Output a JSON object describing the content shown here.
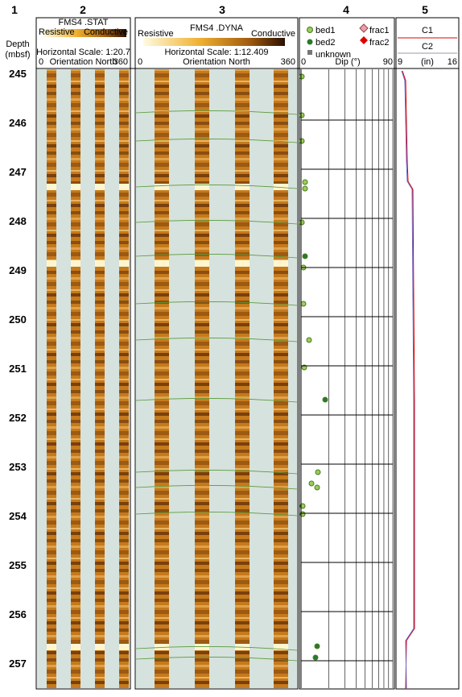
{
  "columns": [
    {
      "number": "1",
      "header": [
        "Depth",
        "(mbsf)"
      ]
    },
    {
      "number": "2",
      "title": "FMS4 .STAT",
      "left": "Resistive",
      "right": "Conductive",
      "scale": "Horizontal Scale: 1:20.7",
      "axis_min": "0",
      "axis_label": "Orientation North",
      "axis_max": "360"
    },
    {
      "number": "3",
      "title": "FMS4 .DYNA",
      "left": "Resistive",
      "right": "Conductive",
      "scale": "Horizontal Scale:  1:12.409",
      "axis_min": "0",
      "axis_label": "Orientation North",
      "axis_max": "360"
    },
    {
      "number": "4",
      "legend": [
        "bed1",
        "bed2",
        "unknown",
        "frac1",
        "frac2"
      ],
      "axis_min": "0",
      "axis_label": "Dip (°)",
      "axis_max": "90"
    },
    {
      "number": "5",
      "curves": [
        "C1",
        "C2"
      ],
      "axis_min": "9",
      "axis_label": "(in)",
      "axis_max": "16"
    }
  ],
  "depths": [
    245,
    246,
    247,
    248,
    249,
    250,
    251,
    252,
    253,
    254,
    255,
    256,
    257
  ]
}
